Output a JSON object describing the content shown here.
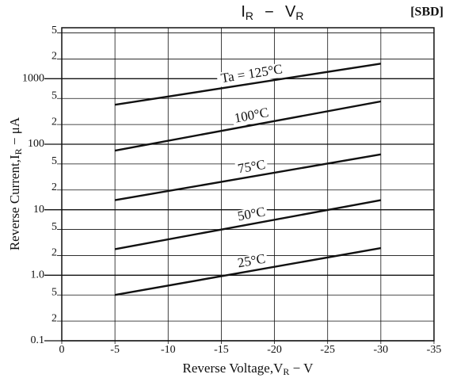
{
  "chart_data": {
    "type": "line",
    "title": {
      "left": {
        "text": "I",
        "sub": "R"
      },
      "dash": "−",
      "right": {
        "text": "V",
        "sub": "R"
      }
    },
    "badge": "[SBD]",
    "xlabel": {
      "text": "Reverse Voltage,V",
      "sub": "R",
      "tail": " − V"
    },
    "ylabel": {
      "text": "Reverse Current,I",
      "sub": "R",
      "tail": " − μA"
    },
    "log_y": true,
    "grid": true,
    "xlim": [
      0,
      -35
    ],
    "xticks": [
      0,
      -5,
      -10,
      -15,
      -20,
      -25,
      -30,
      -35
    ],
    "ylim": [
      0.1,
      6000
    ],
    "yticks": [
      {
        "value": 5000,
        "label": "5"
      },
      {
        "value": 2000,
        "label": "2"
      },
      1000,
      {
        "value": 500,
        "label": "5"
      },
      {
        "value": 200,
        "label": "2"
      },
      100,
      {
        "value": 50,
        "label": "5"
      },
      {
        "value": 20,
        "label": "2"
      },
      10,
      5,
      2,
      {
        "value": 1,
        "label": "1.0"
      },
      {
        "value": 0.5,
        "label": "5"
      },
      {
        "value": 0.2,
        "label": "2"
      },
      0.1
    ],
    "x": [
      -5,
      -30
    ],
    "series": [
      {
        "name": "Ta = 125°C",
        "color": "#111111",
        "values": [
          400,
          1700
        ]
      },
      {
        "name": "100°C",
        "color": "#111111",
        "values": [
          80,
          450
        ]
      },
      {
        "name": "75°C",
        "color": "#111111",
        "values": [
          14,
          70
        ]
      },
      {
        "name": "50°C",
        "color": "#111111",
        "values": [
          2.5,
          14
        ]
      },
      {
        "name": "25°C",
        "color": "#111111",
        "values": [
          0.5,
          2.6
        ]
      }
    ]
  }
}
